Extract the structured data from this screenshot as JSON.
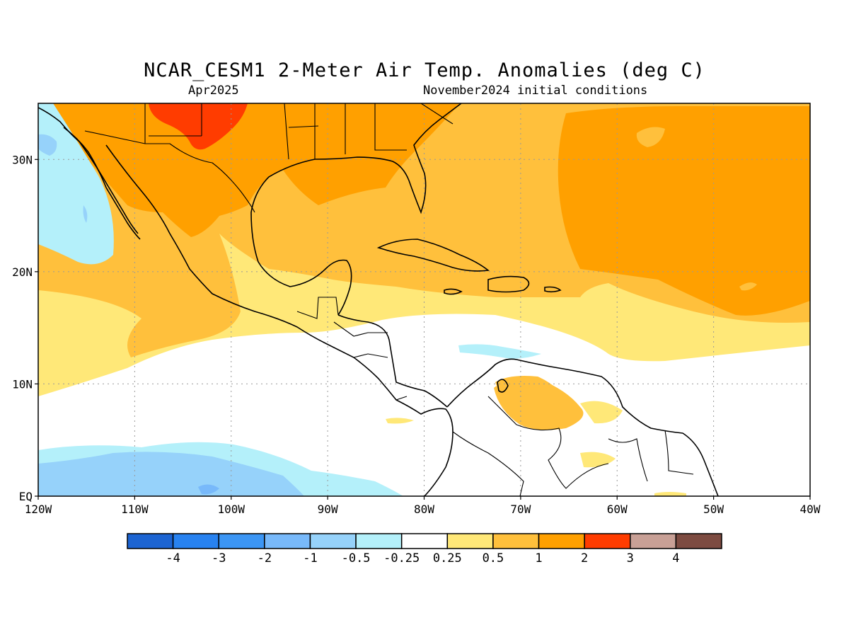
{
  "header": {
    "title": "NCAR_CESM1 2-Meter Air Temp. Anomalies (deg C)",
    "target_month": "Apr2025",
    "init_label": "November2024 initial conditions"
  },
  "map": {
    "lon_range": [
      -120,
      -40
    ],
    "lat_range": [
      0,
      35
    ],
    "lon_tick_labels": [
      "120W",
      "110W",
      "100W",
      "90W",
      "80W",
      "70W",
      "60W",
      "50W",
      "40W"
    ],
    "lat_tick_labels": [
      "EQ",
      "10N",
      "20N",
      "30N"
    ],
    "grid": "dotted"
  },
  "legend": {
    "colors": [
      "#1c64d2",
      "#2882f0",
      "#3c96f5",
      "#78b9fa",
      "#96d2fa",
      "#b4f0fa",
      "#ffffff",
      "#ffe878",
      "#ffc03c",
      "#ffa000",
      "#ff3c00",
      "#c8a096",
      "#7d4b41"
    ],
    "labels": [
      "-4",
      "-3",
      "-2",
      "-1",
      "-0.5",
      "-0.25",
      "0.25",
      "0.5",
      "1",
      "2",
      "3",
      "4"
    ]
  }
}
